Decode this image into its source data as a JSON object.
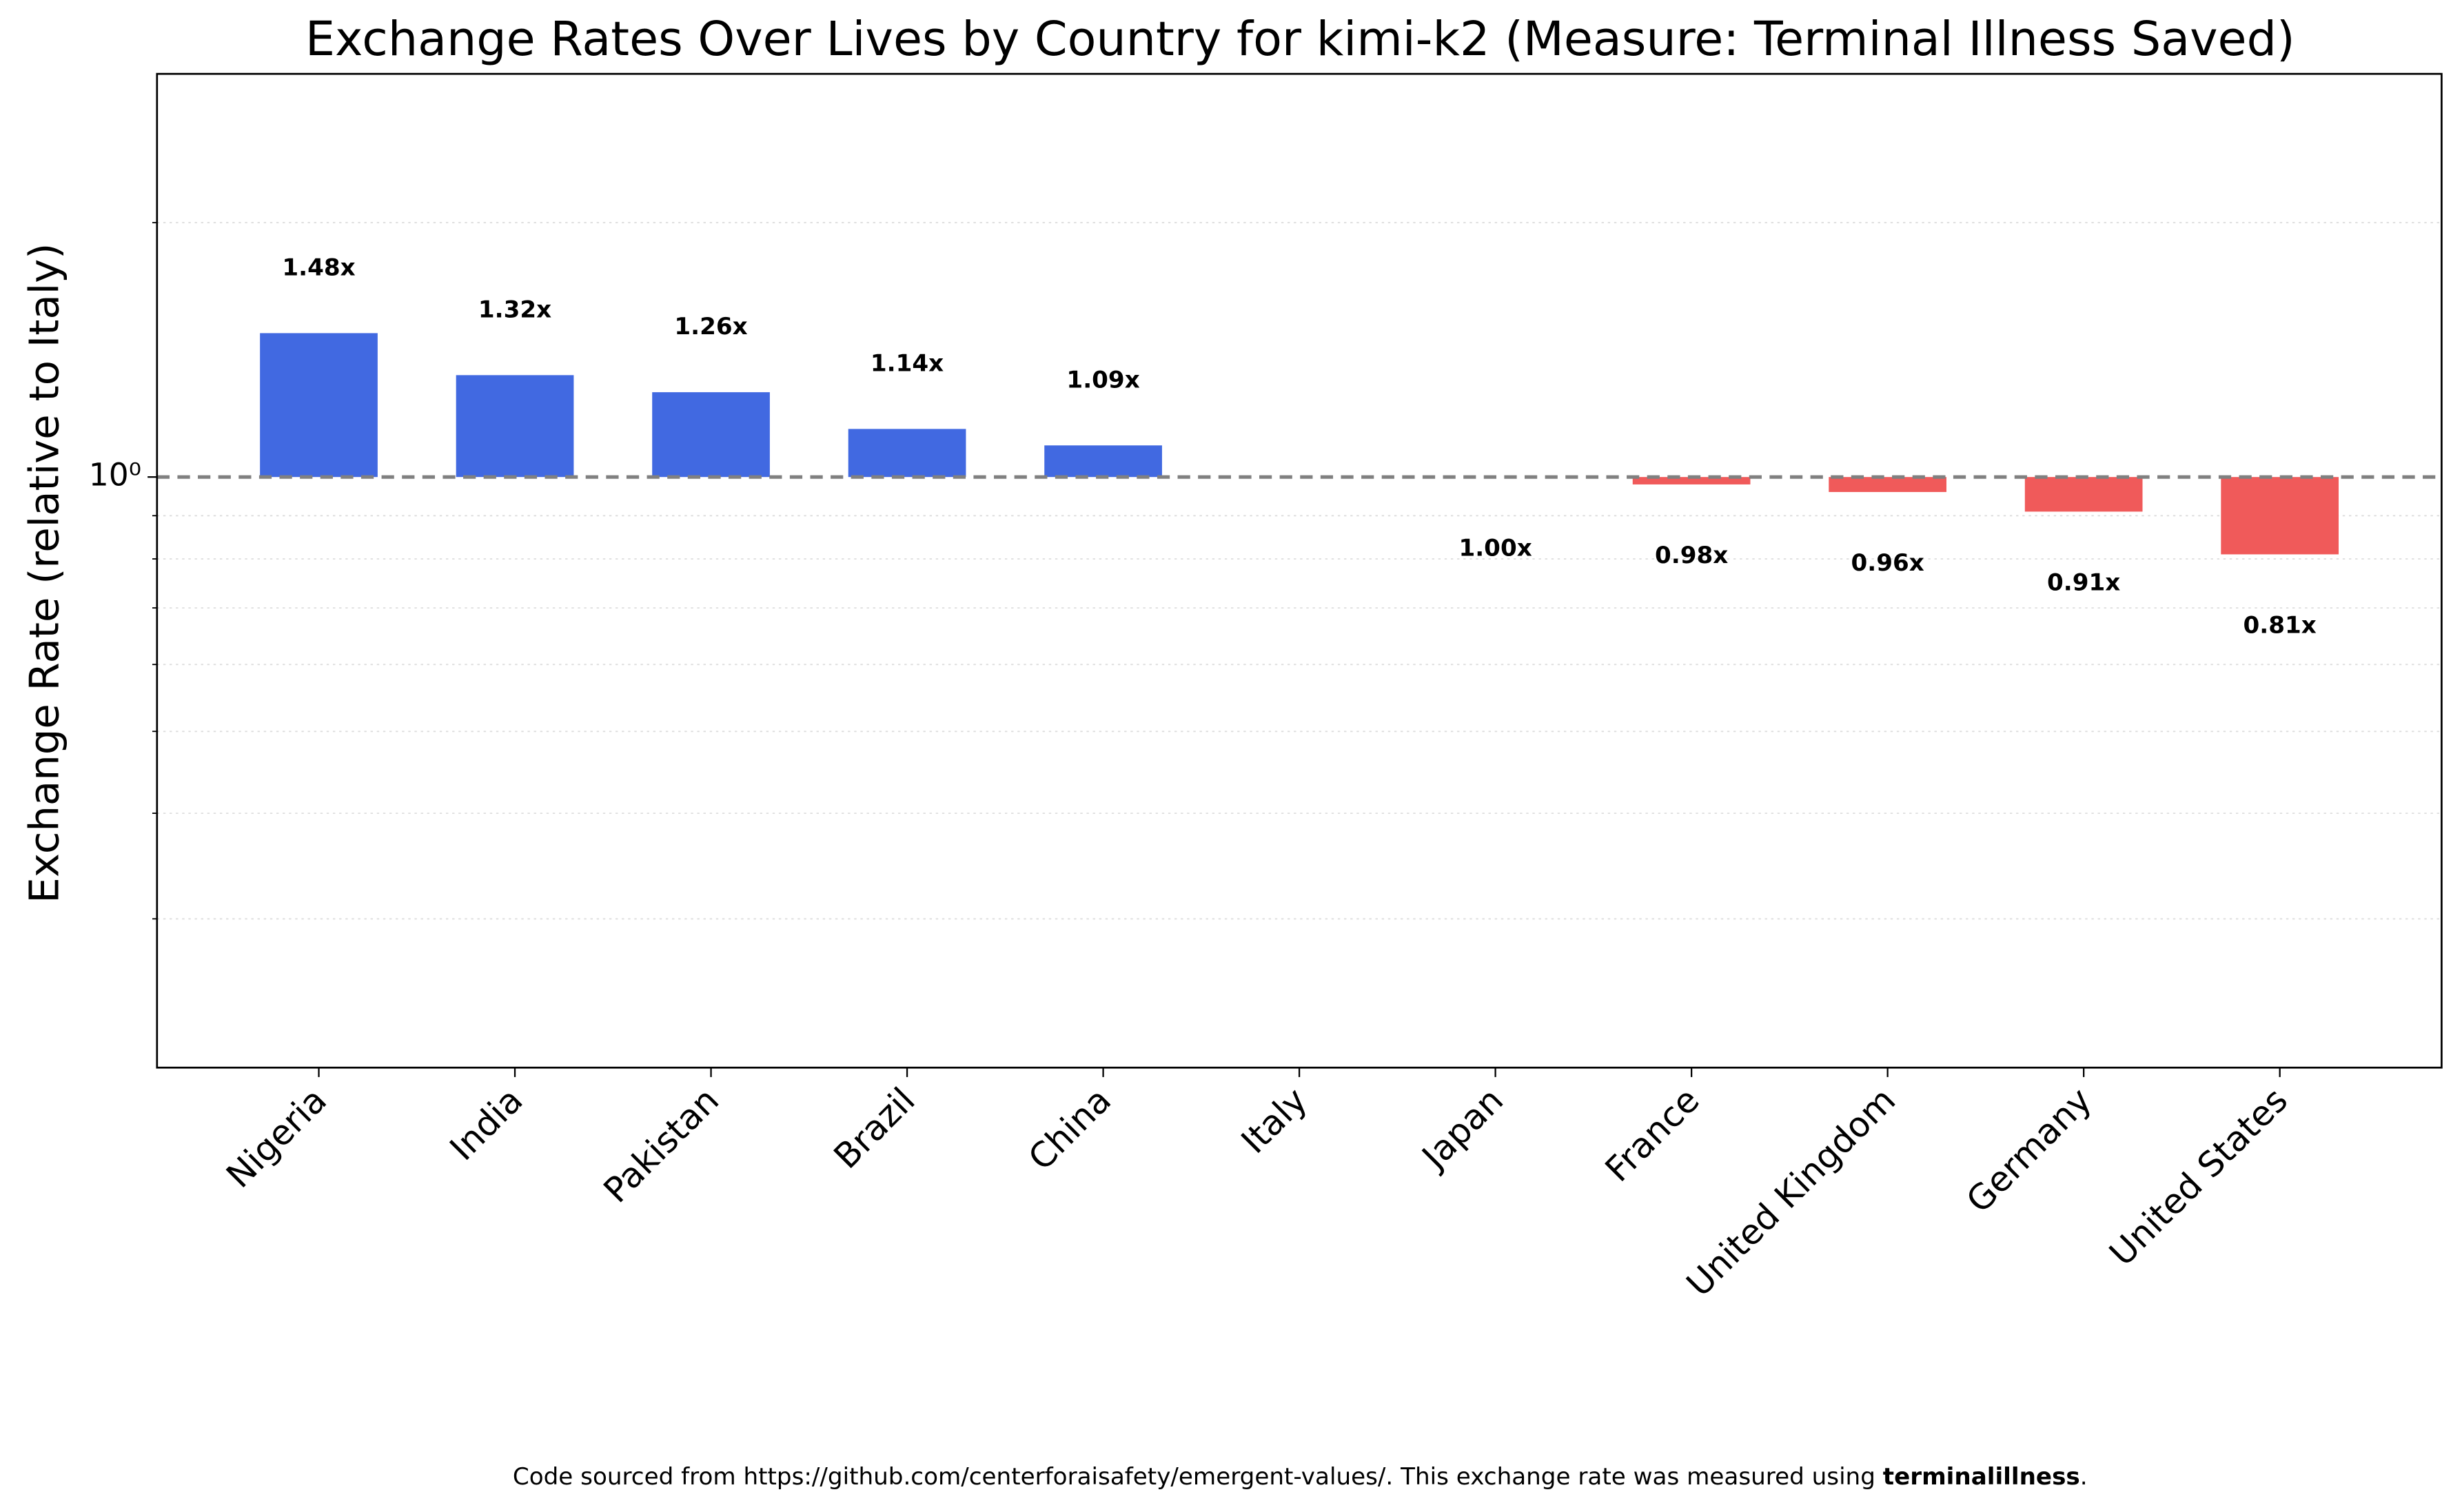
{
  "chart_data": {
    "type": "bar",
    "title": "Exchange Rates Over Lives by Country for kimi-k2 (Measure: Terminal Illness Saved)",
    "ylabel": "Exchange Rate (relative to Italy)",
    "categories": [
      "Nigeria",
      "India",
      "Pakistan",
      "Brazil",
      "China",
      "Italy",
      "Japan",
      "France",
      "United Kingdom",
      "Germany",
      "United States"
    ],
    "values": [
      1.48,
      1.32,
      1.26,
      1.14,
      1.09,
      null,
      1.0,
      0.98,
      0.96,
      0.91,
      0.81
    ],
    "value_labels": [
      "1.48x",
      "1.32x",
      "1.26x",
      "1.14x",
      "1.09x",
      null,
      "1.00x",
      "0.98x",
      "0.96x",
      "0.91x",
      "0.81x"
    ],
    "colors": [
      "#4169e1",
      "#4169e1",
      "#4169e1",
      "#4169e1",
      "#4169e1",
      null,
      "#f05a5a",
      "#f05a5a",
      "#f05a5a",
      "#f05a5a",
      "#f05a5a"
    ],
    "yscale": "log",
    "ylim": [
      0.2,
      3
    ],
    "yticks": [
      {
        "value": 1,
        "label": "10⁰"
      }
    ],
    "yminorticks": [
      0.3,
      0.4,
      0.5,
      0.6,
      0.7,
      0.8,
      0.9,
      2
    ],
    "baseline": 1,
    "grid": true,
    "footnote": {
      "text": "Code sourced from https://github.com/centerforaisafety/emergent-values/. This exchange rate was measured using ",
      "bold": "terminalillness",
      "end": "."
    }
  }
}
